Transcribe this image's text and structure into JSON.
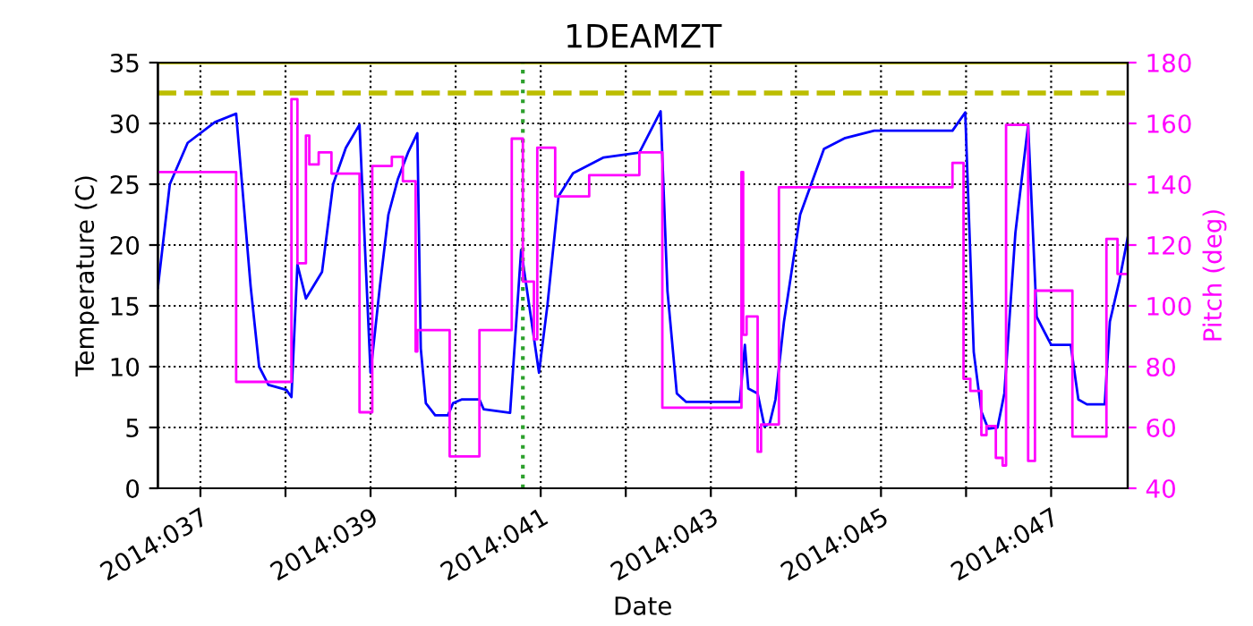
{
  "chart_data": {
    "type": "line",
    "title": "1DEAMZT",
    "xlabel": "Date",
    "ylabel": "Temperature (C)",
    "y2label": "Pitch (deg)",
    "xlim": [
      "2014-02-05T12:00",
      "2014-02-16T21:36"
    ],
    "xticks": [
      {
        "value": "2014-02-06",
        "label": "2014:037"
      },
      {
        "value": "2014-02-07",
        "label": null
      },
      {
        "value": "2014-02-08",
        "label": "2014:039"
      },
      {
        "value": "2014-02-09",
        "label": null
      },
      {
        "value": "2014-02-10",
        "label": "2014:041"
      },
      {
        "value": "2014-02-11",
        "label": null
      },
      {
        "value": "2014-02-12",
        "label": "2014:043"
      },
      {
        "value": "2014-02-13",
        "label": null
      },
      {
        "value": "2014-02-14",
        "label": "2014:045"
      },
      {
        "value": "2014-02-15",
        "label": null
      },
      {
        "value": "2014-02-16",
        "label": "2014:047"
      }
    ],
    "ylim": [
      0,
      35
    ],
    "yticks": [
      0,
      5,
      10,
      15,
      20,
      25,
      30,
      35
    ],
    "y2lim": [
      40,
      180
    ],
    "y2ticks": [
      40,
      60,
      80,
      100,
      120,
      140,
      160,
      180
    ],
    "grid": true,
    "line_style": "solid",
    "marker": "none",
    "series": [
      {
        "color": "#0000ff",
        "x": [
          "2014-02-05T12:00",
          "2014-02-05T15:22",
          "2014-02-05T20:24",
          "2014-02-06T04:05",
          "2014-02-06T10:05",
          "2014-02-06T14:10",
          "2014-02-06T16:34",
          "2014-02-06T19:12",
          "2014-02-07T00:14",
          "2014-02-07T01:41",
          "2014-02-07T03:22",
          "2014-02-07T05:46",
          "2014-02-07T10:19",
          "2014-02-07T13:26",
          "2014-02-07T17:02",
          "2014-02-07T20:53",
          "2014-02-08T00:00",
          "2014-02-08T02:38",
          "2014-02-08T05:02",
          "2014-02-08T07:41",
          "2014-02-08T10:34",
          "2014-02-08T13:12",
          "2014-02-08T14:10",
          "2014-02-08T15:36",
          "2014-02-08T18:14",
          "2014-02-08T21:50",
          "2014-02-08T23:17",
          "2014-02-09T01:41",
          "2014-02-09T06:43",
          "2014-02-09T07:55",
          "2014-02-09T15:22",
          "2014-02-09T18:29",
          "2014-02-09T23:31",
          "2014-02-10T01:55",
          "2014-02-10T05:02",
          "2014-02-10T09:07",
          "2014-02-10T17:46",
          "2014-02-11T03:50",
          "2014-02-11T09:50",
          "2014-02-11T11:46",
          "2014-02-11T14:24",
          "2014-02-11T17:02",
          "2014-02-12T08:10",
          "2014-02-12T09:36",
          "2014-02-12T10:34",
          "2014-02-12T13:12",
          "2014-02-12T15:07",
          "2014-02-12T16:34",
          "2014-02-12T18:14",
          "2014-02-12T20:38",
          "2014-02-13T01:12",
          "2014-02-13T07:55",
          "2014-02-13T13:55",
          "2014-02-13T22:05",
          "2014-02-14T20:10",
          "2014-02-14T23:46",
          "2014-02-15T02:10",
          "2014-02-15T04:19",
          "2014-02-15T06:14",
          "2014-02-15T08:53",
          "2014-02-15T10:48",
          "2014-02-15T13:55",
          "2014-02-15T17:31",
          "2014-02-15T19:55",
          "2014-02-16T00:00",
          "2014-02-16T05:31",
          "2014-02-16T07:41",
          "2014-02-16T10:05",
          "2014-02-16T15:07",
          "2014-02-16T16:34",
          "2014-02-16T19:12",
          "2014-02-16T21:36"
        ],
        "values": [
          16.5,
          25,
          28.4,
          30.1,
          30.8,
          16.6,
          10,
          8.5,
          8.1,
          7.5,
          18.4,
          15.6,
          17.8,
          25,
          28,
          29.9,
          9.5,
          16.6,
          22.5,
          25.4,
          27.6,
          29.2,
          11.5,
          7,
          6,
          6,
          7,
          7.3,
          7.3,
          6.5,
          6.2,
          19.6,
          9.5,
          15.1,
          24,
          25.9,
          27.2,
          27.6,
          31,
          16.2,
          7.8,
          7.1,
          7.1,
          11.8,
          8.2,
          7.8,
          5.1,
          5.3,
          7.3,
          13.7,
          22.5,
          27.9,
          28.8,
          29.4,
          29.4,
          30.9,
          11.2,
          6.3,
          4.9,
          5,
          7.8,
          21,
          29.9,
          14.1,
          11.8,
          11.8,
          7.3,
          6.9,
          6.9,
          13.7,
          17,
          20.6
        ]
      },
      {
        "type": "step",
        "axis": "y2",
        "color": "#ff00ff",
        "x": [
          "2014-02-05T12:00",
          "2014-02-06T10:05",
          "2014-02-07T01:41",
          "2014-02-07T03:22",
          "2014-02-07T05:46",
          "2014-02-07T06:43",
          "2014-02-07T09:22",
          "2014-02-07T12:58",
          "2014-02-07T20:53",
          "2014-02-08T00:29",
          "2014-02-08T06:00",
          "2014-02-08T09:07",
          "2014-02-08T12:43",
          "2014-02-08T13:12",
          "2014-02-08T22:19",
          "2014-02-09T06:43",
          "2014-02-09T15:50",
          "2014-02-09T18:58",
          "2014-02-09T22:05",
          "2014-02-09T23:02",
          "2014-02-10T04:05",
          "2014-02-10T13:41",
          "2014-02-11T03:50",
          "2014-02-11T10:19",
          "2014-02-12T08:38",
          "2014-02-12T09:07",
          "2014-02-12T10:05",
          "2014-02-12T13:12",
          "2014-02-12T14:10",
          "2014-02-12T19:12",
          "2014-02-14T20:10",
          "2014-02-14T23:17",
          "2014-02-15T01:12",
          "2014-02-15T04:19",
          "2014-02-15T05:46",
          "2014-02-15T08:24",
          "2014-02-15T10:19",
          "2014-02-15T11:17",
          "2014-02-15T17:31",
          "2014-02-15T19:26",
          "2014-02-16T06:00",
          "2014-02-16T15:36",
          "2014-02-16T18:43",
          "2014-02-16T21:36"
        ],
        "values": [
          144,
          75,
          168,
          114,
          156,
          146.5,
          150.5,
          143.5,
          65,
          146,
          149,
          141,
          85,
          92,
          50.5,
          92,
          155,
          108,
          89,
          152,
          136,
          143,
          150.5,
          66.5,
          144,
          90.5,
          96.5,
          52,
          61,
          139,
          147,
          76,
          72,
          57.5,
          60.5,
          50,
          47.5,
          159.5,
          49,
          105,
          57,
          122,
          110.5,
          110.5
        ]
      }
    ],
    "ref_lines": [
      {
        "axis": "y",
        "value": 32.5,
        "color": "#bcbd00",
        "line_style": "dashed"
      },
      {
        "axis": "y",
        "value": 35,
        "color": "#bcbd00",
        "line_style": "solid"
      },
      {
        "axis": "x",
        "value": "2014-02-09T18:58",
        "color": "#2ca02c",
        "line_style": "dotted"
      }
    ]
  }
}
